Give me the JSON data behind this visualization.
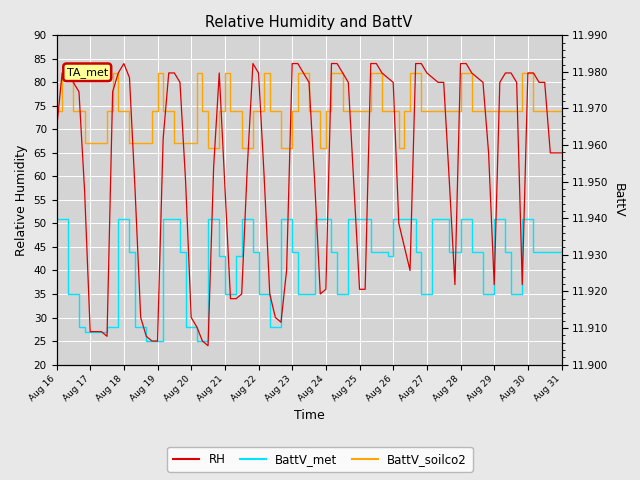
{
  "title": "Relative Humidity and BattV",
  "xlabel": "Time",
  "ylabel_left": "Relative Humidity",
  "ylabel_right": "BattV",
  "ylim_left": [
    20,
    90
  ],
  "ylim_right": [
    11.9,
    11.99
  ],
  "annotation_text": "TA_met",
  "background_color": "#e8e8e8",
  "plot_bg_color": "#d4d4d4",
  "grid_color": "#ffffff",
  "rh_color": "#dd0000",
  "met_color": "#00e5ff",
  "soilco2_color": "#ffa500",
  "n_days": 15,
  "rh_data": [
    70,
    82,
    82,
    80,
    78,
    57,
    27,
    27,
    27,
    26,
    78,
    82,
    84,
    81,
    57,
    30,
    26,
    25,
    25,
    68,
    82,
    82,
    80,
    59,
    30,
    28,
    25,
    24,
    62,
    82,
    58,
    34,
    34,
    35,
    62,
    84,
    82,
    60,
    35,
    30,
    29,
    40,
    84,
    84,
    82,
    80,
    59,
    35,
    36,
    84,
    84,
    82,
    80,
    58,
    36,
    36,
    84,
    84,
    82,
    81,
    80,
    50,
    45,
    40,
    84,
    84,
    82,
    81,
    80,
    80,
    59,
    37,
    84,
    84,
    82,
    81,
    80,
    65,
    37,
    80,
    82,
    82,
    80,
    37,
    82,
    82,
    80,
    80,
    65,
    65,
    65
  ],
  "battv_met_data": [
    51,
    51,
    35,
    35,
    28,
    27,
    27,
    27,
    27,
    28,
    28,
    51,
    51,
    44,
    28,
    28,
    25,
    25,
    25,
    51,
    51,
    51,
    44,
    28,
    28,
    25,
    25,
    51,
    51,
    43,
    35,
    35,
    43,
    51,
    51,
    44,
    35,
    35,
    28,
    28,
    51,
    51,
    44,
    35,
    35,
    35,
    51,
    51,
    51,
    44,
    35,
    35,
    51,
    51,
    51,
    51,
    44,
    44,
    44,
    43,
    51,
    51,
    51,
    51,
    44,
    35,
    35,
    51,
    51,
    51,
    44,
    44,
    51,
    51,
    44,
    44,
    35,
    35,
    51,
    51,
    44,
    35,
    35,
    51,
    51,
    44,
    44,
    44,
    44,
    44,
    44
  ],
  "battv_soilco2_data": [
    74,
    82,
    82,
    74,
    74,
    67,
    67,
    67,
    67,
    74,
    82,
    74,
    74,
    67,
    67,
    67,
    67,
    74,
    82,
    74,
    74,
    67,
    67,
    67,
    67,
    82,
    74,
    66,
    66,
    74,
    82,
    74,
    74,
    66,
    66,
    74,
    74,
    82,
    74,
    74,
    66,
    66,
    74,
    82,
    82,
    74,
    74,
    66,
    74,
    82,
    82,
    74,
    74,
    74,
    74,
    74,
    82,
    82,
    74,
    74,
    74,
    66,
    74,
    82,
    82,
    74,
    74,
    74,
    74,
    74,
    74,
    74,
    82,
    82,
    74,
    74,
    74,
    74,
    74,
    74,
    74,
    74,
    74,
    82,
    82,
    74,
    74,
    74,
    74,
    74,
    74
  ],
  "xtick_labels": [
    "Aug 16",
    "Aug 17",
    "Aug 18",
    "Aug 19",
    "Aug 20",
    "Aug 21",
    "Aug 22",
    "Aug 23",
    "Aug 24",
    "Aug 25",
    "Aug 26",
    "Aug 27",
    "Aug 28",
    "Aug 29",
    "Aug 30",
    "Aug 31"
  ]
}
